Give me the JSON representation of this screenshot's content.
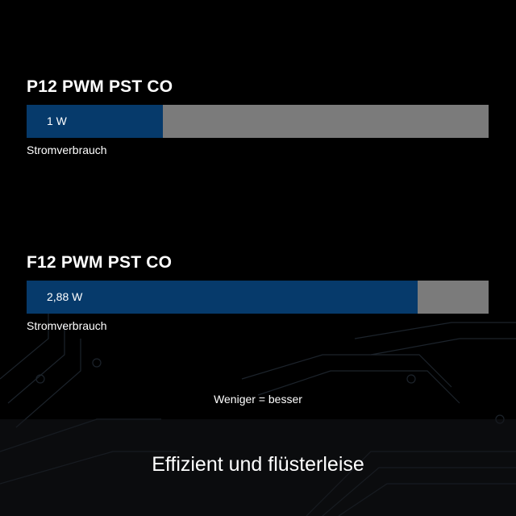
{
  "chart_data": {
    "type": "bar",
    "orientation": "horizontal",
    "categories": [
      "P12 PWM PST CO",
      "F12 PWM PST CO"
    ],
    "values": [
      1,
      2.88
    ],
    "value_labels": [
      "1 W",
      "2,88 W"
    ],
    "unit": "W",
    "bar_caption": "Stromverbrauch",
    "xlim": [
      0,
      3.4
    ],
    "grid": false,
    "colors": {
      "fill": "#063a6b",
      "track": "#7b7b7b",
      "background": "#000000"
    }
  },
  "note": "Weniger = besser",
  "headline": "Effizient und flüsterleise"
}
